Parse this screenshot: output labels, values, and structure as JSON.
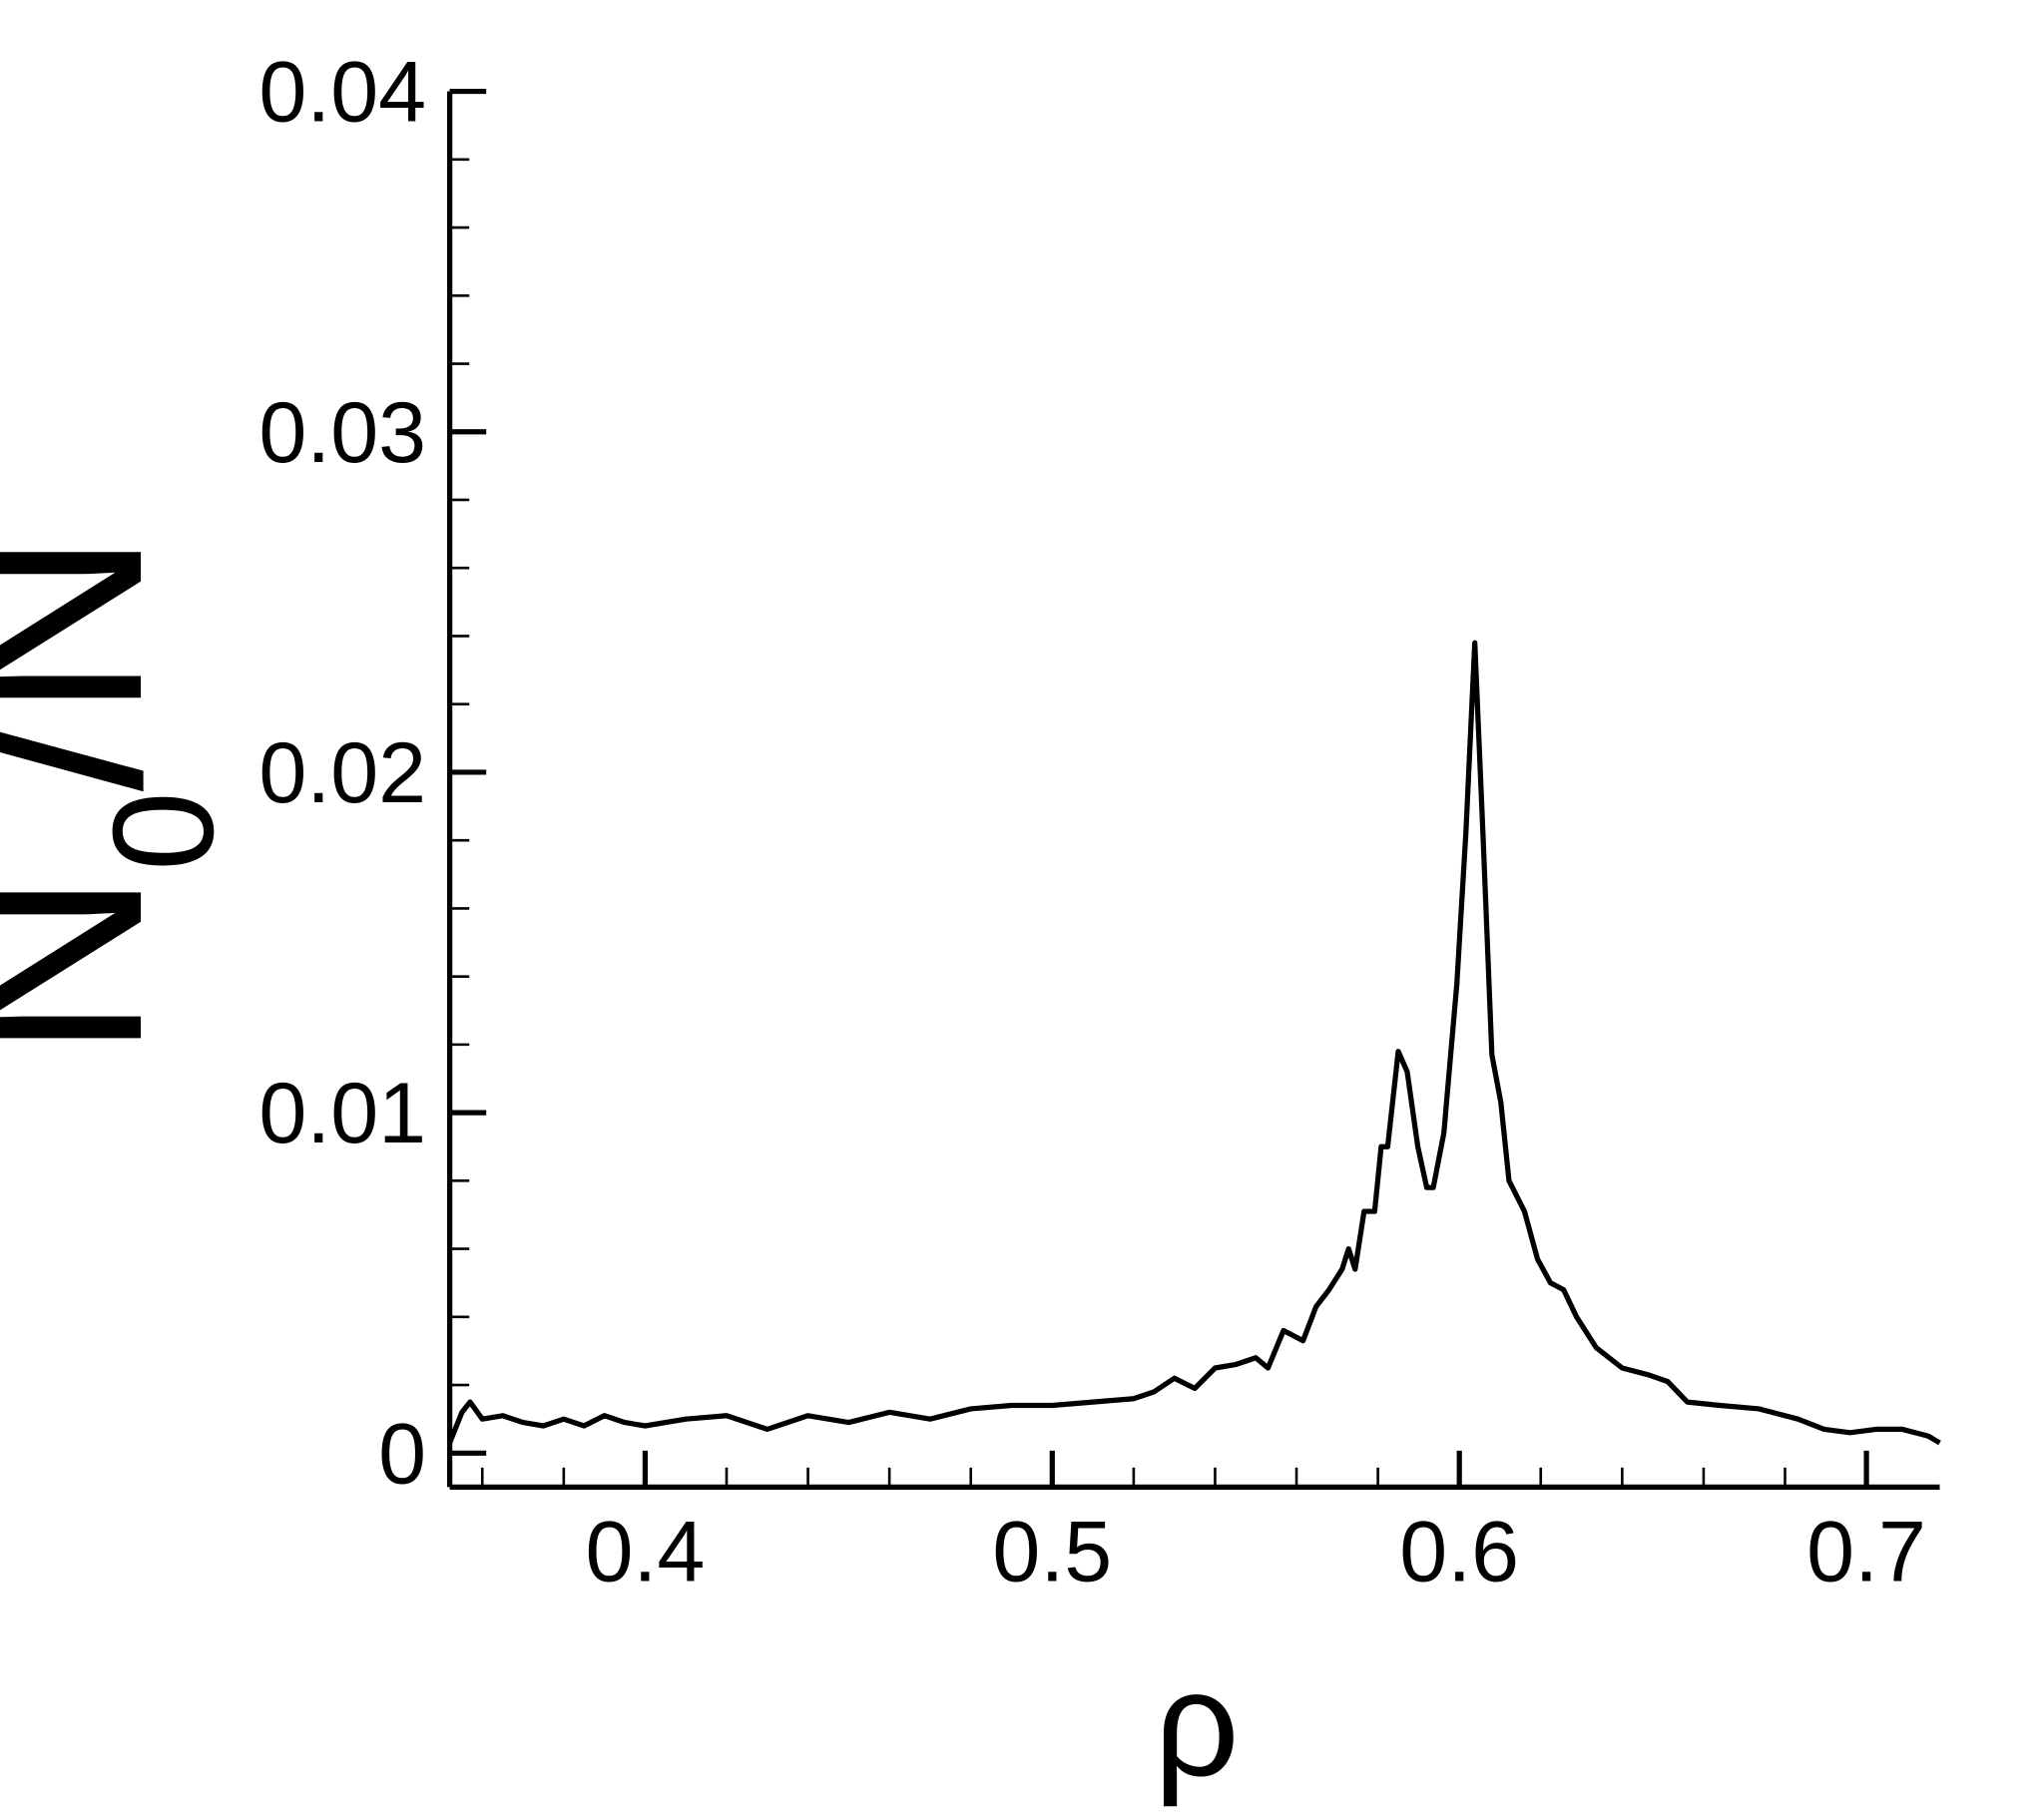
{
  "chart_data": {
    "type": "line",
    "xlabel": "ρ",
    "ylabel": {
      "main": "N",
      "sub": "0",
      "rest": "/N"
    },
    "xlim": [
      0.352,
      0.718
    ],
    "ylim": [
      -0.001,
      0.04
    ],
    "xticks": [
      0.4,
      0.5,
      0.6,
      0.7
    ],
    "yticks": [
      0,
      0.01,
      0.02,
      0.03,
      0.04
    ],
    "xminorticks": [
      0.36,
      0.38,
      0.42,
      0.44,
      0.46,
      0.48,
      0.52,
      0.54,
      0.56,
      0.58,
      0.62,
      0.64,
      0.66,
      0.68
    ],
    "yminorticks": [
      0.002,
      0.004,
      0.006,
      0.008,
      0.012,
      0.014,
      0.016,
      0.018,
      0.022,
      0.024,
      0.026,
      0.028,
      0.032,
      0.034,
      0.036,
      0.038
    ],
    "series": [
      {
        "color": "#000000",
        "x": [
          0.352,
          0.355,
          0.357,
          0.36,
          0.365,
          0.37,
          0.375,
          0.38,
          0.385,
          0.39,
          0.395,
          0.4,
          0.41,
          0.42,
          0.43,
          0.44,
          0.45,
          0.46,
          0.47,
          0.48,
          0.49,
          0.5,
          0.51,
          0.52,
          0.525,
          0.53,
          0.535,
          0.54,
          0.545,
          0.55,
          0.553,
          0.5568,
          0.5616,
          0.5648,
          0.568,
          0.5712,
          0.5728,
          0.5744,
          0.5766,
          0.5792,
          0.5808,
          0.5824,
          0.585,
          0.5872,
          0.5898,
          0.592,
          0.5936,
          0.5962,
          0.5994,
          0.6016,
          0.6038,
          0.6058,
          0.608,
          0.6102,
          0.6122,
          0.616,
          0.6192,
          0.6224,
          0.6256,
          0.6288,
          0.6336,
          0.64,
          0.6464,
          0.6512,
          0.656,
          0.664,
          0.6736,
          0.6832,
          0.6896,
          0.696,
          0.7024,
          0.7088,
          0.7152,
          0.718
        ],
        "values": [
          0.0003,
          0.0012,
          0.0015,
          0.001,
          0.0011,
          0.0009,
          0.0008,
          0.001,
          0.0008,
          0.0011,
          0.0009,
          0.0008,
          0.001,
          0.0011,
          0.0007,
          0.0011,
          0.0009,
          0.0012,
          0.001,
          0.0013,
          0.0014,
          0.0014,
          0.0015,
          0.0016,
          0.0018,
          0.0022,
          0.0019,
          0.0025,
          0.0026,
          0.0028,
          0.0025,
          0.0036,
          0.0033,
          0.0043,
          0.0048,
          0.0054,
          0.006,
          0.0054,
          0.0071,
          0.0071,
          0.009,
          0.009,
          0.0118,
          0.0112,
          0.009,
          0.0078,
          0.0078,
          0.0094,
          0.0138,
          0.0182,
          0.0238,
          0.0182,
          0.0117,
          0.0103,
          0.008,
          0.0071,
          0.0057,
          0.005,
          0.0048,
          0.004,
          0.0031,
          0.0025,
          0.0023,
          0.0021,
          0.0015,
          0.0014,
          0.0013,
          0.001,
          0.0007,
          0.0006,
          0.0007,
          0.0007,
          0.0005,
          0.0003
        ]
      }
    ]
  }
}
